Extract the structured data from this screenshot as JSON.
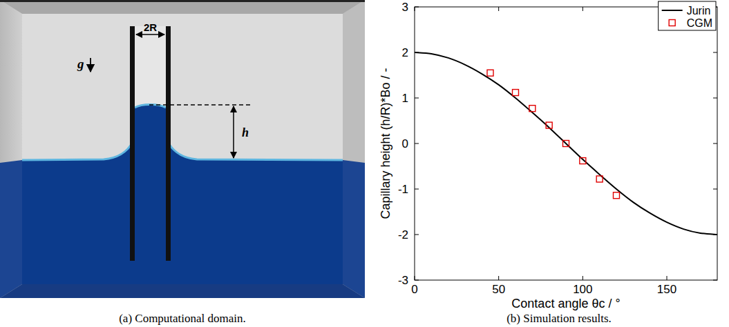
{
  "domain": {
    "labels": {
      "width": "2R",
      "gravity": "g",
      "height": "h"
    },
    "caption": "(a) Computational domain."
  },
  "chart_data": {
    "type": "scatter",
    "title": "(b) Simulation results.",
    "xlabel": "Contact angle θc / °",
    "ylabel": "Capillary height (h/R)*Bo / -",
    "xlim": [
      0,
      180
    ],
    "ylim": [
      -3,
      3
    ],
    "xticks": [
      0,
      50,
      100,
      150
    ],
    "yticks": [
      -3,
      -2,
      -1,
      0,
      1,
      2,
      3
    ],
    "legend": "upper right",
    "series": [
      {
        "name": "Jurin",
        "type": "line",
        "color": "#000000",
        "line_style": "solid",
        "x": [
          0,
          10,
          20,
          30,
          40,
          50,
          60,
          70,
          80,
          90,
          100,
          110,
          120,
          130,
          140,
          150,
          160,
          170,
          180
        ],
        "values": [
          2.0,
          1.97,
          1.88,
          1.73,
          1.53,
          1.29,
          1.0,
          0.68,
          0.35,
          0.0,
          -0.35,
          -0.68,
          -1.0,
          -1.29,
          -1.53,
          -1.73,
          -1.88,
          -1.97,
          -2.0
        ]
      },
      {
        "name": "CGM",
        "type": "scatter",
        "color": "#e00000",
        "marker": "square",
        "x": [
          45,
          60,
          70,
          80,
          90,
          100,
          110,
          120
        ],
        "values": [
          1.55,
          1.12,
          0.77,
          0.4,
          0.0,
          -0.38,
          -0.78,
          -1.14
        ]
      }
    ]
  }
}
